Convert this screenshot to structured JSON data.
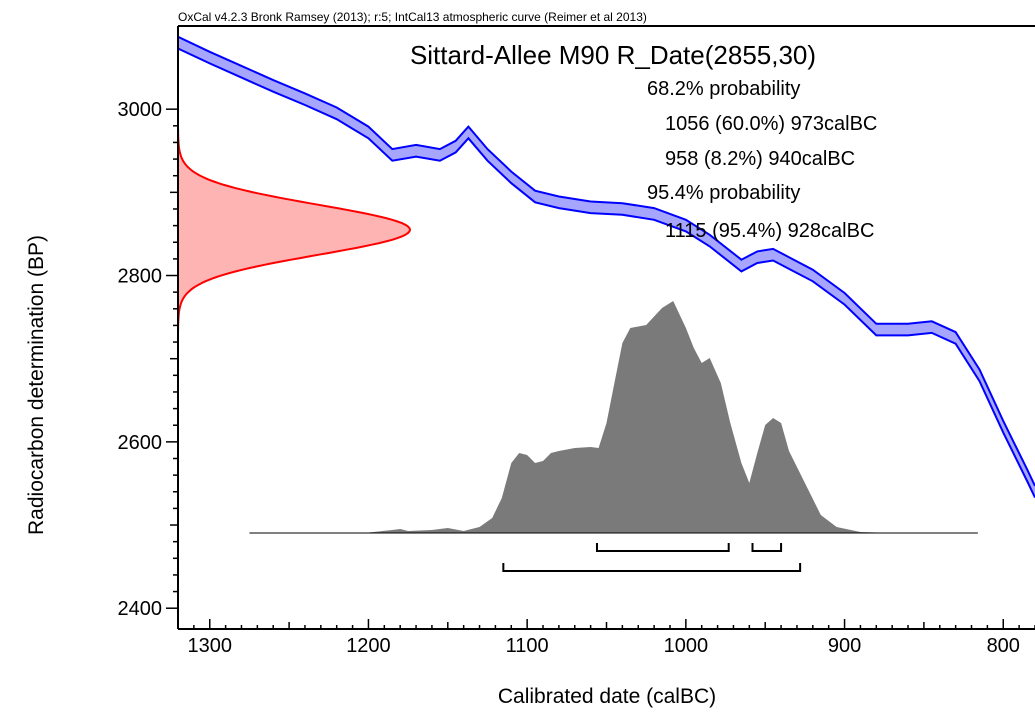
{
  "header": "OxCal v4.2.3 Bronk Ramsey (2013); r:5; IntCal13 atmospheric curve (Reimer et al 2013)",
  "colors": {
    "curve_fill": "#a6a6ff",
    "curve_line": "#0000ff",
    "radiocarbon_fill": "#ffb4b4",
    "radiocarbon_line": "#ff0000",
    "posterior_fill": "#7a7a7a"
  },
  "chart_data": {
    "type": "area",
    "title": "Sittard-Allee M90 R_Date(2855,30)",
    "xlabel": "Calibrated date (calBC)",
    "ylabel": "Radiocarbon determination (BP)",
    "x_reversed": true,
    "xlim": [
      1320,
      780
    ],
    "ylim": [
      2375,
      3100
    ],
    "x_ticks": [
      "1300",
      "1200",
      "1100",
      "1000",
      "900",
      "800"
    ],
    "y_ticks": [
      "3000",
      "2800",
      "2600",
      "2400"
    ],
    "summary": [
      "68.2% probability",
      "1056 (60.0%) 973calBC",
      "958 (8.2%) 940calBC",
      "95.4% probability",
      "1115 (95.4%) 928calBC"
    ],
    "calibration_curve": {
      "name": "IntCal13",
      "x": [
        1320,
        1300,
        1280,
        1260,
        1240,
        1220,
        1200,
        1185,
        1170,
        1155,
        1145,
        1137,
        1125,
        1110,
        1095,
        1080,
        1060,
        1040,
        1020,
        1000,
        985,
        965,
        955,
        945,
        935,
        920,
        900,
        880,
        860,
        845,
        830,
        815,
        800,
        785,
        780
      ],
      "mid": [
        3080,
        3062,
        3045,
        3028,
        3012,
        2995,
        2972,
        2945,
        2950,
        2945,
        2955,
        2972,
        2945,
        2918,
        2895,
        2888,
        2882,
        2880,
        2874,
        2860,
        2842,
        2812,
        2822,
        2825,
        2815,
        2800,
        2772,
        2735,
        2735,
        2738,
        2725,
        2680,
        2618,
        2560,
        2540
      ],
      "half_width": 7
    },
    "radiocarbon_date": {
      "mean": 2855,
      "sd": 30
    },
    "posterior": {
      "x": [
        1275,
        1200,
        1185,
        1180,
        1175,
        1160,
        1150,
        1140,
        1130,
        1122,
        1116,
        1110,
        1105,
        1100,
        1095,
        1090,
        1085,
        1080,
        1070,
        1060,
        1055,
        1050,
        1045,
        1040,
        1035,
        1025,
        1015,
        1008,
        1000,
        995,
        990,
        985,
        978,
        972,
        965,
        960,
        955,
        950,
        945,
        940,
        935,
        925,
        915,
        905,
        890,
        870,
        816
      ],
      "y": [
        0,
        0.5,
        3,
        4,
        2,
        3,
        5,
        2,
        6,
        15,
        35,
        70,
        80,
        78,
        70,
        72,
        80,
        82,
        85,
        86,
        85,
        110,
        150,
        190,
        205,
        208,
        225,
        232,
        205,
        185,
        170,
        175,
        150,
        110,
        70,
        50,
        80,
        108,
        115,
        110,
        82,
        50,
        18,
        6,
        1,
        0,
        0
      ],
      "hpd_68": [
        [
          1056,
          973
        ],
        [
          958,
          940
        ]
      ],
      "hpd_95": [
        [
          1115,
          928
        ]
      ]
    }
  }
}
